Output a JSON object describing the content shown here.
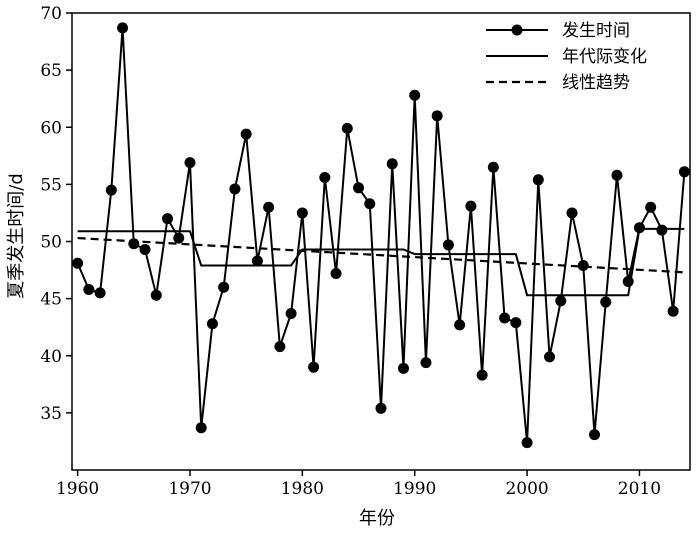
{
  "chart_data": {
    "type": "line",
    "xlabel": "年份",
    "ylabel": "夏季发生时间/d",
    "xlim": [
      1959.5,
      2014.5
    ],
    "ylim": [
      30,
      70
    ],
    "x_ticks": [
      1960,
      1970,
      1980,
      1990,
      2000,
      2010
    ],
    "y_ticks": [
      35,
      40,
      45,
      50,
      55,
      60,
      65,
      70
    ],
    "legend_position": "top-right",
    "grid": false,
    "series": [
      {
        "name": "发生时间",
        "style": "line-with-markers",
        "x": [
          1960,
          1961,
          1962,
          1963,
          1964,
          1965,
          1966,
          1967,
          1968,
          1969,
          1970,
          1971,
          1972,
          1973,
          1974,
          1975,
          1976,
          1977,
          1978,
          1979,
          1980,
          1981,
          1982,
          1983,
          1984,
          1985,
          1986,
          1987,
          1988,
          1989,
          1990,
          1991,
          1992,
          1993,
          1994,
          1995,
          1996,
          1997,
          1998,
          1999,
          2000,
          2001,
          2002,
          2003,
          2004,
          2005,
          2006,
          2007,
          2008,
          2009,
          2010,
          2011,
          2012,
          2013,
          2014
        ],
        "values": [
          48.1,
          45.8,
          45.5,
          54.5,
          68.7,
          49.8,
          49.3,
          45.3,
          52.0,
          50.3,
          56.9,
          33.7,
          42.8,
          46.0,
          54.6,
          59.4,
          48.3,
          53.0,
          40.8,
          43.7,
          52.5,
          39.0,
          55.6,
          47.2,
          59.9,
          54.7,
          53.3,
          35.4,
          56.8,
          38.9,
          62.8,
          39.4,
          61.0,
          49.7,
          42.7,
          53.1,
          38.3,
          56.5,
          43.3,
          42.9,
          32.4,
          55.4,
          39.9,
          44.8,
          52.5,
          47.9,
          33.1,
          44.7,
          55.8,
          46.5,
          51.2,
          53.0,
          51.0,
          43.9,
          56.1
        ]
      },
      {
        "name": "年代际变化",
        "style": "step",
        "segments": [
          {
            "x": [
              1960,
              1970
            ],
            "value": 50.9
          },
          {
            "x": [
              1971,
              1979
            ],
            "value": 47.9
          },
          {
            "x": [
              1980,
              1989
            ],
            "value": 49.3
          },
          {
            "x": [
              1990,
              1999
            ],
            "value": 48.9
          },
          {
            "x": [
              2000,
              2009
            ],
            "value": 45.3
          },
          {
            "x": [
              2010,
              2014
            ],
            "value": 51.1
          }
        ]
      },
      {
        "name": "线性趋势",
        "style": "dashed",
        "x": [
          1960,
          2014
        ],
        "values": [
          50.3,
          47.3
        ]
      }
    ]
  }
}
